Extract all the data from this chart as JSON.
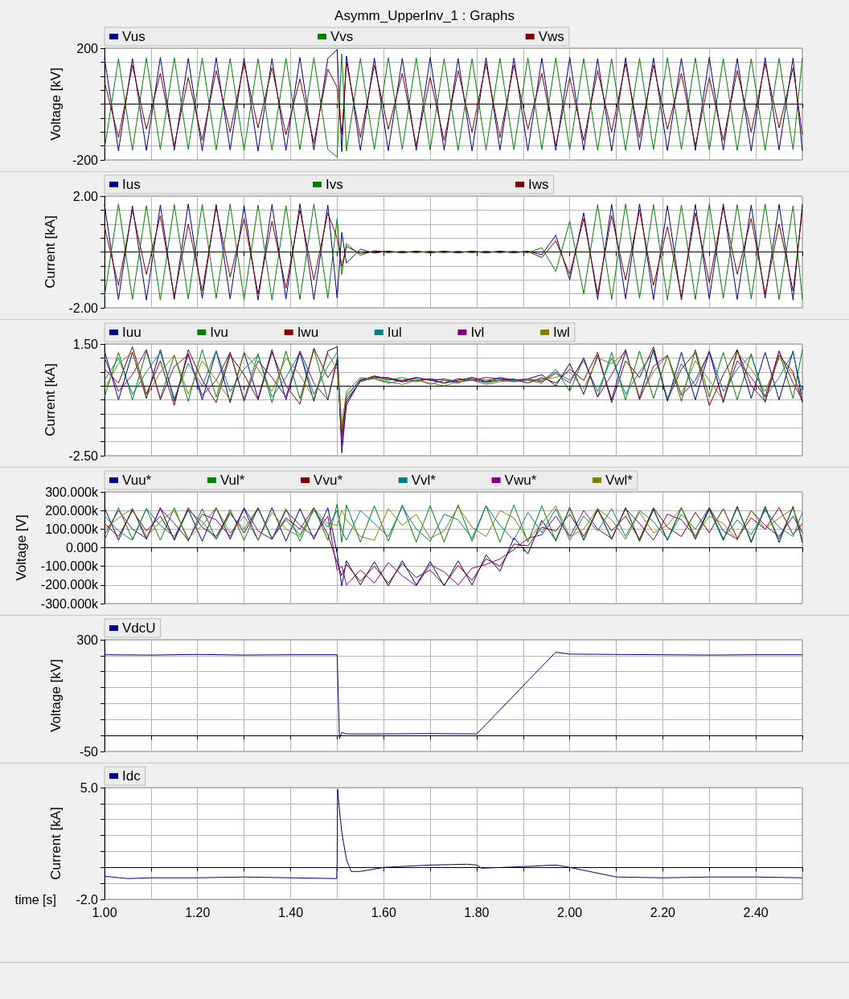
{
  "chart_data": [
    {
      "type": "line",
      "title": "Asymm_UpperInv_1 : Graphs",
      "ylabel": "Voltage [kV]",
      "legend": "top",
      "grid": true,
      "marker": "none",
      "tick_labels": "y",
      "xlim": [
        1,
        2.5
      ],
      "xticks": [
        {
          "value": 1,
          "label": null
        },
        {
          "value": 1.1,
          "label": null
        },
        {
          "value": 1.2,
          "label": null
        },
        {
          "value": 1.3,
          "label": null
        },
        {
          "value": 1.4,
          "label": null
        },
        {
          "value": 1.5,
          "label": null
        },
        {
          "value": 1.6,
          "label": null
        },
        {
          "value": 1.7,
          "label": null
        },
        {
          "value": 1.8,
          "label": null
        },
        {
          "value": 1.9,
          "label": null
        },
        {
          "value": 2,
          "label": null
        },
        {
          "value": 2.1,
          "label": null
        },
        {
          "value": 2.2,
          "label": null
        },
        {
          "value": 2.3,
          "label": null
        },
        {
          "value": 2.4,
          "label": null
        },
        {
          "value": 2.5,
          "label": null
        }
      ],
      "ylim": [
        -200,
        200
      ],
      "yticks": [
        -200,
        {
          "value": -150,
          "label": null
        },
        {
          "value": -100,
          "label": null
        },
        {
          "value": -50,
          "label": null
        },
        {
          "value": 0,
          "label": null
        },
        {
          "value": 50,
          "label": null
        },
        {
          "value": 100,
          "label": null
        },
        {
          "value": 150,
          "label": null
        },
        200
      ],
      "x": [
        1.0,
        1.03,
        1.06,
        1.09,
        1.12,
        1.15,
        1.18,
        1.21,
        1.24,
        1.27,
        1.3,
        1.33,
        1.36,
        1.39,
        1.42,
        1.45,
        1.48,
        1.5,
        1.51,
        1.52,
        1.55,
        1.58,
        1.61,
        1.64,
        1.67,
        1.7,
        1.73,
        1.76,
        1.79,
        1.82,
        1.85,
        1.88,
        1.91,
        1.94,
        1.97,
        2.0,
        2.03,
        2.06,
        2.09,
        2.12,
        2.15,
        2.18,
        2.21,
        2.24,
        2.27,
        2.3,
        2.33,
        2.36,
        2.39,
        2.42,
        2.45,
        2.48,
        2.5
      ],
      "series": [
        {
          "name": "Vus",
          "color": "#000080",
          "values": [
            165,
            -168,
            163,
            -166,
            167,
            -165,
            164,
            -167,
            166,
            -164,
            165,
            -168,
            163,
            -166,
            167,
            -165,
            164,
            195,
            -170,
            172,
            -166,
            165,
            -167,
            164,
            -166,
            167,
            -165,
            163,
            -168,
            166,
            -164,
            165,
            -167,
            164,
            -166,
            167,
            -165,
            163,
            -168,
            166,
            -164,
            165,
            -167,
            164,
            -166,
            167,
            -165,
            163,
            -168,
            166,
            -164,
            165,
            -167
          ]
        },
        {
          "name": "Vvs",
          "color": "#008000",
          "values": [
            -160,
            162,
            -165,
            164,
            -163,
            166,
            -162,
            165,
            -164,
            163,
            -166,
            162,
            -165,
            164,
            -163,
            166,
            -162,
            -190,
            180,
            -168,
            164,
            -163,
            166,
            -162,
            165,
            -164,
            163,
            -166,
            162,
            -165,
            164,
            -163,
            166,
            -162,
            165,
            -164,
            163,
            -166,
            162,
            -165,
            164,
            -163,
            166,
            -162,
            165,
            -164,
            163,
            -166,
            162,
            -165,
            164,
            -163,
            166
          ]
        },
        {
          "name": "Vws",
          "color": "#800000",
          "values": [
            80,
            -120,
            140,
            -90,
            110,
            -150,
            95,
            -130,
            120,
            -100,
            145,
            -85,
            130,
            -110,
            90,
            -140,
            125,
            60,
            -110,
            150,
            -120,
            140,
            -90,
            110,
            -150,
            95,
            -130,
            120,
            -100,
            145,
            -120,
            140,
            -90,
            110,
            -150,
            95,
            -130,
            120,
            -100,
            145,
            -120,
            140,
            -90,
            110,
            -150,
            95,
            -130,
            120,
            -100,
            145,
            -85,
            130,
            -110
          ]
        }
      ]
    },
    {
      "type": "line",
      "ylabel": "Current [kA]",
      "legend": "top",
      "grid": true,
      "marker": "none",
      "tick_labels": "y",
      "xlim": [
        1,
        2.5
      ],
      "xticks": [
        {
          "value": 1,
          "label": null
        },
        {
          "value": 1.1,
          "label": null
        },
        {
          "value": 1.2,
          "label": null
        },
        {
          "value": 1.3,
          "label": null
        },
        {
          "value": 1.4,
          "label": null
        },
        {
          "value": 1.5,
          "label": null
        },
        {
          "value": 1.6,
          "label": null
        },
        {
          "value": 1.7,
          "label": null
        },
        {
          "value": 1.8,
          "label": null
        },
        {
          "value": 1.9,
          "label": null
        },
        {
          "value": 2,
          "label": null
        },
        {
          "value": 2.1,
          "label": null
        },
        {
          "value": 2.2,
          "label": null
        },
        {
          "value": 2.3,
          "label": null
        },
        {
          "value": 2.4,
          "label": null
        },
        {
          "value": 2.5,
          "label": null
        }
      ],
      "ylim": [
        -2,
        2
      ],
      "yticks": [
        {
          "value": -2,
          "label": "-2.00"
        },
        {
          "value": -1.5,
          "label": null
        },
        {
          "value": -1,
          "label": null
        },
        {
          "value": -0.5,
          "label": null
        },
        {
          "value": 0,
          "label": null
        },
        {
          "value": 0.5,
          "label": null
        },
        {
          "value": 1,
          "label": null
        },
        {
          "value": 1.5,
          "label": null
        },
        {
          "value": 2,
          "label": "2.00"
        }
      ],
      "x": [
        1.0,
        1.03,
        1.06,
        1.09,
        1.12,
        1.15,
        1.18,
        1.21,
        1.24,
        1.27,
        1.3,
        1.33,
        1.36,
        1.39,
        1.42,
        1.45,
        1.48,
        1.5,
        1.51,
        1.52,
        1.55,
        1.58,
        1.61,
        1.64,
        1.67,
        1.7,
        1.73,
        1.76,
        1.79,
        1.82,
        1.85,
        1.88,
        1.91,
        1.94,
        1.97,
        2.0,
        2.03,
        2.06,
        2.09,
        2.12,
        2.15,
        2.18,
        2.21,
        2.24,
        2.27,
        2.3,
        2.33,
        2.36,
        2.39,
        2.42,
        2.45,
        2.48,
        2.5
      ],
      "series": [
        {
          "name": "Ius",
          "color": "#000080",
          "values": [
            1.7,
            -1.7,
            1.65,
            -1.72,
            1.68,
            -1.7,
            1.72,
            -1.66,
            1.7,
            -1.68,
            1.66,
            -1.72,
            1.7,
            -1.68,
            1.72,
            -1.7,
            1.68,
            -1.65,
            0.7,
            -0.4,
            0.1,
            -0.04,
            0.03,
            -0.03,
            0.03,
            -0.03,
            0.03,
            -0.03,
            0.03,
            -0.03,
            0.03,
            -0.03,
            0.03,
            -0.1,
            0.6,
            -1.0,
            1.4,
            -1.7,
            1.7,
            -1.68,
            1.72,
            -1.7,
            1.66,
            -1.72,
            1.7,
            -1.68,
            1.72,
            -1.7,
            1.68,
            -1.66,
            1.7,
            -1.72,
            1.7
          ]
        },
        {
          "name": "Ivs",
          "color": "#008000",
          "values": [
            -1.6,
            1.72,
            -1.7,
            1.66,
            -1.72,
            1.7,
            -1.68,
            1.7,
            -1.66,
            1.72,
            -1.7,
            1.68,
            -1.72,
            1.66,
            -1.7,
            1.72,
            -1.66,
            1.2,
            -0.8,
            0.3,
            -0.12,
            0.05,
            -0.03,
            0.03,
            -0.03,
            0.03,
            -0.03,
            0.03,
            -0.03,
            0.03,
            -0.03,
            0.03,
            -0.03,
            0.15,
            -0.7,
            1.1,
            -1.5,
            1.7,
            -1.7,
            1.72,
            -1.66,
            1.7,
            -1.72,
            1.68,
            -1.7,
            1.72,
            -1.66,
            1.7,
            -1.68,
            1.72,
            -1.7,
            1.66,
            -1.7
          ]
        },
        {
          "name": "Iws",
          "color": "#800000",
          "values": [
            0.9,
            -1.2,
            1.5,
            -0.8,
            1.3,
            -1.6,
            1.0,
            -1.4,
            1.6,
            -0.9,
            1.2,
            -1.5,
            1.1,
            -1.3,
            1.5,
            -1.0,
            1.4,
            0.5,
            -0.5,
            0.2,
            -0.06,
            0.02,
            0.02,
            -0.02,
            0.02,
            -0.02,
            0.02,
            -0.02,
            0.02,
            -0.02,
            0.02,
            -0.02,
            0.02,
            -0.2,
            0.4,
            -0.8,
            1.2,
            -1.5,
            1.3,
            -1.0,
            1.5,
            -1.2,
            0.9,
            -1.6,
            1.4,
            -1.1,
            1.6,
            -0.8,
            1.2,
            -1.5,
            1.0,
            -1.4,
            1.5
          ]
        }
      ]
    },
    {
      "type": "line",
      "ylabel": "Current [kA]",
      "legend": "top",
      "grid": true,
      "marker": "none",
      "tick_labels": "y",
      "xlim": [
        1,
        2.5
      ],
      "xticks": [
        {
          "value": 1,
          "label": null
        },
        {
          "value": 1.1,
          "label": null
        },
        {
          "value": 1.2,
          "label": null
        },
        {
          "value": 1.3,
          "label": null
        },
        {
          "value": 1.4,
          "label": null
        },
        {
          "value": 1.5,
          "label": null
        },
        {
          "value": 1.6,
          "label": null
        },
        {
          "value": 1.7,
          "label": null
        },
        {
          "value": 1.8,
          "label": null
        },
        {
          "value": 1.9,
          "label": null
        },
        {
          "value": 2,
          "label": null
        },
        {
          "value": 2.1,
          "label": null
        },
        {
          "value": 2.2,
          "label": null
        },
        {
          "value": 2.3,
          "label": null
        },
        {
          "value": 2.4,
          "label": null
        },
        {
          "value": 2.5,
          "label": null
        }
      ],
      "ylim": [
        -2.5,
        1.5
      ],
      "yticks": [
        {
          "value": -2.5,
          "label": "-2.50"
        },
        {
          "value": -2,
          "label": null
        },
        {
          "value": -1.5,
          "label": null
        },
        {
          "value": -1,
          "label": null
        },
        {
          "value": -0.5,
          "label": null
        },
        {
          "value": 0,
          "label": null
        },
        {
          "value": 0.5,
          "label": null
        },
        {
          "value": 1,
          "label": null
        },
        {
          "value": 1.5,
          "label": "1.50"
        }
      ],
      "x": [
        1.0,
        1.03,
        1.06,
        1.09,
        1.12,
        1.15,
        1.18,
        1.21,
        1.24,
        1.27,
        1.3,
        1.33,
        1.36,
        1.39,
        1.42,
        1.45,
        1.48,
        1.5,
        1.51,
        1.52,
        1.55,
        1.58,
        1.61,
        1.64,
        1.67,
        1.7,
        1.73,
        1.76,
        1.79,
        1.82,
        1.85,
        1.88,
        1.91,
        1.94,
        1.97,
        2.0,
        2.03,
        2.06,
        2.09,
        2.12,
        2.15,
        2.18,
        2.21,
        2.24,
        2.27,
        2.3,
        2.33,
        2.36,
        2.39,
        2.42,
        2.45,
        2.48,
        2.5
      ],
      "series": [
        {
          "name": "Iuu",
          "color": "#000080",
          "values": [
            1.25,
            -0.5,
            1.2,
            -0.45,
            1.3,
            -0.55,
            1.15,
            -0.5,
            1.25,
            -0.6,
            1.2,
            -0.45,
            1.3,
            -0.5,
            1.2,
            -0.55,
            1.25,
            1.4,
            -2.4,
            -0.6,
            0.2,
            0.35,
            0.25,
            0.15,
            0.3,
            0.2,
            0.1,
            0.25,
            0.2,
            0.15,
            0.3,
            0.2,
            0.25,
            0.4,
            0.0,
            0.8,
            -0.3,
            1.1,
            -0.5,
            1.25,
            -0.45,
            1.3,
            -0.55,
            1.2,
            -0.5,
            1.25,
            -0.6,
            1.3,
            -0.45,
            1.2,
            -0.5,
            1.25,
            -0.55
          ]
        },
        {
          "name": "Ivu",
          "color": "#008000",
          "values": [
            -0.4,
            1.2,
            -0.5,
            1.25,
            -0.45,
            1.1,
            -0.55,
            1.3,
            -0.4,
            1.2,
            -0.5,
            1.15,
            -0.6,
            1.25,
            -0.45,
            1.3,
            -0.5,
            1.0,
            -1.9,
            -0.4,
            0.25,
            0.3,
            0.2,
            0.3,
            0.15,
            0.25,
            0.2,
            0.1,
            0.3,
            0.2,
            0.25,
            0.15,
            0.2,
            0.1,
            0.6,
            -0.2,
            1.0,
            -0.4,
            1.2,
            -0.5,
            1.25,
            -0.45,
            1.1,
            -0.55,
            1.3,
            -0.4,
            1.2,
            -0.5,
            1.15,
            -0.6,
            1.25,
            -0.45,
            1.3
          ]
        },
        {
          "name": "Iwu",
          "color": "#800000",
          "values": [
            0.6,
            0.1,
            1.4,
            -0.3,
            0.9,
            -0.7,
            1.3,
            0.2,
            -0.6,
            1.1,
            0.4,
            -0.5,
            1.2,
            0.0,
            -0.65,
            1.35,
            0.3,
            0.8,
            -1.7,
            -0.5,
            0.15,
            0.3,
            0.3,
            0.15,
            0.2,
            0.25,
            0.1,
            0.2,
            0.3,
            0.15,
            0.2,
            0.25,
            0.1,
            0.3,
            0.1,
            0.6,
            0.2,
            1.2,
            -0.6,
            0.9,
            0.3,
            1.4,
            -0.5,
            0.6,
            1.2,
            -0.7,
            0.4,
            1.3,
            0.0,
            -0.55,
            1.1,
            0.5,
            -0.6
          ]
        },
        {
          "name": "Iul",
          "color": "#008080",
          "values": [
            0.2,
            1.0,
            -0.3,
            0.5,
            1.2,
            -0.45,
            0.8,
            0.0,
            1.25,
            -0.2,
            0.6,
            1.1,
            -0.4,
            0.3,
            1.2,
            -0.3,
            0.7,
            1.2,
            -1.4,
            -0.3,
            0.2,
            0.25,
            0.1,
            0.2,
            0.25,
            0.05,
            0.2,
            0.15,
            0.25,
            0.1,
            0.2,
            0.15,
            0.2,
            0.2,
            0.5,
            0.2,
            0.9,
            -0.2,
            1.0,
            -0.3,
            0.5,
            1.2,
            -0.45,
            0.8,
            0.0,
            1.25,
            -0.2,
            0.6,
            1.1,
            -0.4,
            0.3,
            1.2,
            -0.3
          ]
        },
        {
          "name": "Ivl",
          "color": "#800080",
          "values": [
            1.0,
            -0.2,
            0.4,
            1.3,
            -0.5,
            0.7,
            1.1,
            -0.35,
            0.2,
            1.2,
            -0.55,
            0.9,
            0.3,
            -0.4,
            1.25,
            0.1,
            -0.5,
            0.9,
            -2.1,
            -0.7,
            0.2,
            0.35,
            0.25,
            0.2,
            0.3,
            0.2,
            0.25,
            0.15,
            0.2,
            0.3,
            0.25,
            0.2,
            0.25,
            0.15,
            0.45,
            0.1,
            1.0,
            -0.4,
            0.4,
            1.3,
            -0.5,
            0.7,
            1.1,
            -0.35,
            0.2,
            1.2,
            -0.55,
            0.9,
            0.3,
            -0.4,
            1.25,
            0.1,
            -0.5
          ]
        },
        {
          "name": "Iwl",
          "color": "#808000",
          "values": [
            -0.1,
            0.8,
            1.2,
            -0.4,
            0.5,
            1.1,
            -0.3,
            0.9,
            0.2,
            -0.5,
            1.2,
            0.6,
            -0.2,
            1.0,
            0.4,
            -0.45,
            1.15,
            0.6,
            -1.5,
            -0.2,
            0.3,
            0.25,
            0.15,
            0.05,
            0.2,
            0.1,
            0.0,
            0.15,
            0.2,
            0.05,
            0.15,
            0.2,
            0.1,
            0.25,
            0.3,
            0.5,
            -0.1,
            1.0,
            0.8,
            1.2,
            -0.4,
            0.5,
            1.1,
            -0.3,
            0.9,
            0.2,
            -0.5,
            1.2,
            0.6,
            -0.2,
            1.0,
            0.4,
            -0.45
          ]
        }
      ]
    },
    {
      "type": "line",
      "ylabel": "Voltage [V]",
      "legend": "top",
      "grid": true,
      "marker": "none",
      "tick_labels": "y",
      "xlim": [
        1,
        2.5
      ],
      "xticks": [
        {
          "value": 1,
          "label": null
        },
        {
          "value": 1.1,
          "label": null
        },
        {
          "value": 1.2,
          "label": null
        },
        {
          "value": 1.3,
          "label": null
        },
        {
          "value": 1.4,
          "label": null
        },
        {
          "value": 1.5,
          "label": null
        },
        {
          "value": 1.6,
          "label": null
        },
        {
          "value": 1.7,
          "label": null
        },
        {
          "value": 1.8,
          "label": null
        },
        {
          "value": 1.9,
          "label": null
        },
        {
          "value": 2,
          "label": null
        },
        {
          "value": 2.1,
          "label": null
        },
        {
          "value": 2.2,
          "label": null
        },
        {
          "value": 2.3,
          "label": null
        },
        {
          "value": 2.4,
          "label": null
        },
        {
          "value": 2.5,
          "label": null
        }
      ],
      "ylim": [
        -300000,
        300000
      ],
      "yticks": [
        {
          "value": -300000,
          "label": "-300.000k"
        },
        {
          "value": -200000,
          "label": "-200.000k"
        },
        {
          "value": -100000,
          "label": "-100.000k"
        },
        {
          "value": 0,
          "label": "0.000"
        },
        {
          "value": 100000,
          "label": "100.000k"
        },
        {
          "value": 200000,
          "label": "200.000k"
        },
        {
          "value": 300000,
          "label": "300.000k"
        }
      ],
      "x": [
        1.0,
        1.03,
        1.06,
        1.09,
        1.12,
        1.15,
        1.18,
        1.21,
        1.24,
        1.27,
        1.3,
        1.33,
        1.36,
        1.39,
        1.42,
        1.45,
        1.48,
        1.5,
        1.51,
        1.52,
        1.55,
        1.58,
        1.61,
        1.64,
        1.67,
        1.7,
        1.73,
        1.76,
        1.79,
        1.82,
        1.85,
        1.88,
        1.91,
        1.94,
        1.97,
        2.0,
        2.03,
        2.06,
        2.09,
        2.12,
        2.15,
        2.18,
        2.21,
        2.24,
        2.27,
        2.3,
        2.33,
        2.36,
        2.39,
        2.42,
        2.45,
        2.48,
        2.5
      ],
      "series": [
        {
          "name": "Vuu*",
          "color": "#000080",
          "values": [
            215000,
            40000,
            210000,
            45000,
            215000,
            40000,
            205000,
            35000,
            215000,
            45000,
            210000,
            40000,
            215000,
            35000,
            210000,
            45000,
            215000,
            -30000,
            -205000,
            -70000,
            -200000,
            -75000,
            -205000,
            -70000,
            -200000,
            -75000,
            -205000,
            -70000,
            -200000,
            -39000,
            -126000,
            54000,
            -33000,
            147000,
            40000,
            215000,
            40000,
            210000,
            45000,
            215000,
            35000,
            205000,
            40000,
            215000,
            45000,
            210000,
            40000,
            222000,
            28000,
            222000,
            28000,
            222000,
            28000
          ]
        },
        {
          "name": "Vul*",
          "color": "#008000",
          "values": [
            40000,
            215000,
            45000,
            210000,
            40000,
            215000,
            35000,
            210000,
            45000,
            205000,
            40000,
            215000,
            45000,
            210000,
            35000,
            215000,
            40000,
            235000,
            30000,
            230000,
            30000,
            225000,
            35000,
            230000,
            30000,
            225000,
            30000,
            230000,
            35000,
            225000,
            30000,
            230000,
            30000,
            225000,
            35000,
            215000,
            40000,
            210000,
            45000,
            215000,
            35000,
            210000,
            40000,
            215000,
            45000,
            205000,
            40000,
            215000,
            35000,
            210000,
            45000,
            215000,
            40000
          ]
        },
        {
          "name": "Vvu*",
          "color": "#800000",
          "values": [
            130000,
            60000,
            200000,
            90000,
            170000,
            45000,
            215000,
            110000,
            60000,
            190000,
            80000,
            210000,
            50000,
            160000,
            100000,
            215000,
            70000,
            -80000,
            -150000,
            -90000,
            -180000,
            -100000,
            -190000,
            -85000,
            -160000,
            -120000,
            -200000,
            -95000,
            -175000,
            -60000,
            -100000,
            20000,
            10000,
            110000,
            90000,
            180000,
            60000,
            200000,
            90000,
            170000,
            45000,
            215000,
            110000,
            60000,
            190000,
            80000,
            210000,
            50000,
            160000,
            100000,
            215000,
            70000,
            130000
          ]
        },
        {
          "name": "Vvl*",
          "color": "#008080",
          "values": [
            170000,
            90000,
            40000,
            210000,
            120000,
            60000,
            200000,
            140000,
            45000,
            180000,
            100000,
            215000,
            50000,
            150000,
            70000,
            200000,
            110000,
            200000,
            90000,
            40000,
            200000,
            130000,
            60000,
            220000,
            100000,
            35000,
            180000,
            150000,
            50000,
            225000,
            120000,
            40000,
            190000,
            80000,
            210000,
            40000,
            170000,
            90000,
            210000,
            60000,
            200000,
            140000,
            45000,
            180000,
            100000,
            215000,
            50000,
            150000,
            70000,
            200000,
            110000,
            60000,
            190000
          ]
        },
        {
          "name": "Vwu*",
          "color": "#800080",
          "values": [
            70000,
            200000,
            100000,
            50000,
            210000,
            130000,
            40000,
            180000,
            150000,
            60000,
            215000,
            90000,
            45000,
            200000,
            120000,
            60000,
            170000,
            -120000,
            -100000,
            -200000,
            -120000,
            -190000,
            -80000,
            -150000,
            -205000,
            -90000,
            -130000,
            -200000,
            -110000,
            -90000,
            -60000,
            -10000,
            50000,
            70000,
            170000,
            60000,
            200000,
            100000,
            50000,
            210000,
            130000,
            40000,
            180000,
            150000,
            60000,
            215000,
            90000,
            45000,
            200000,
            120000,
            60000,
            170000,
            80000
          ]
        },
        {
          "name": "Vwl*",
          "color": "#808000",
          "values": [
            100000,
            160000,
            210000,
            60000,
            140000,
            200000,
            50000,
            120000,
            215000,
            80000,
            170000,
            40000,
            190000,
            100000,
            60000,
            210000,
            130000,
            120000,
            200000,
            150000,
            60000,
            40000,
            210000,
            120000,
            180000,
            50000,
            90000,
            220000,
            110000,
            60000,
            200000,
            160000,
            40000,
            130000,
            225000,
            60000,
            100000,
            210000,
            150000,
            45000,
            190000,
            80000,
            120000,
            215000,
            60000,
            170000,
            130000,
            40000,
            200000,
            100000,
            160000,
            210000,
            80000
          ]
        }
      ]
    },
    {
      "type": "line",
      "ylabel": "Voltage [kV]",
      "legend": "top",
      "grid": true,
      "marker": "none",
      "tick_labels": "y",
      "xlim": [
        1,
        2.5
      ],
      "xticks": [
        {
          "value": 1,
          "label": null
        },
        {
          "value": 1.1,
          "label": null
        },
        {
          "value": 1.2,
          "label": null
        },
        {
          "value": 1.3,
          "label": null
        },
        {
          "value": 1.4,
          "label": null
        },
        {
          "value": 1.5,
          "label": null
        },
        {
          "value": 1.6,
          "label": null
        },
        {
          "value": 1.7,
          "label": null
        },
        {
          "value": 1.8,
          "label": null
        },
        {
          "value": 1.9,
          "label": null
        },
        {
          "value": 2,
          "label": null
        },
        {
          "value": 2.1,
          "label": null
        },
        {
          "value": 2.2,
          "label": null
        },
        {
          "value": 2.3,
          "label": null
        },
        {
          "value": 2.4,
          "label": null
        },
        {
          "value": 2.5,
          "label": null
        }
      ],
      "ylim": [
        -50,
        300
      ],
      "yticks": [
        -50,
        {
          "value": 0,
          "label": null
        },
        {
          "value": 50,
          "label": null
        },
        {
          "value": 100,
          "label": null
        },
        {
          "value": 150,
          "label": null
        },
        {
          "value": 200,
          "label": null
        },
        {
          "value": 250,
          "label": null
        },
        300
      ],
      "x": [
        1.0,
        1.1,
        1.2,
        1.3,
        1.4,
        1.5,
        1.502,
        1.505,
        1.51,
        1.52,
        1.6,
        1.7,
        1.8,
        1.85,
        1.9,
        1.95,
        1.97,
        2.0,
        2.1,
        2.2,
        2.3,
        2.4,
        2.5
      ],
      "series": [
        {
          "name": "VdcU",
          "color": "#000080",
          "values": [
            253,
            252,
            254,
            252,
            253,
            253,
            150,
            -10,
            10,
            5,
            5,
            6,
            5,
            80,
            156,
            231,
            261,
            255,
            254,
            253,
            252,
            253,
            253
          ]
        }
      ]
    },
    {
      "type": "line",
      "ylabel": "Current [kA]",
      "xlabel": "time [s]",
      "legend": "top",
      "grid": true,
      "marker": "none",
      "xlim": [
        1,
        2.5
      ],
      "xticks": [
        {
          "value": 1,
          "label": "1.00"
        },
        {
          "value": 1.1,
          "label": null
        },
        {
          "value": 1.2,
          "label": "1.20"
        },
        {
          "value": 1.3,
          "label": null
        },
        {
          "value": 1.4,
          "label": "1.40"
        },
        {
          "value": 1.5,
          "label": null
        },
        {
          "value": 1.6,
          "label": "1.60"
        },
        {
          "value": 1.7,
          "label": null
        },
        {
          "value": 1.8,
          "label": "1.80"
        },
        {
          "value": 1.9,
          "label": null
        },
        {
          "value": 2,
          "label": "2.00"
        },
        {
          "value": 2.1,
          "label": null
        },
        {
          "value": 2.2,
          "label": "2.20"
        },
        {
          "value": 2.3,
          "label": null
        },
        {
          "value": 2.4,
          "label": "2.40"
        },
        {
          "value": 2.5,
          "label": null
        }
      ],
      "ylim": [
        -2,
        5
      ],
      "yticks": [
        {
          "value": -2,
          "label": "-2.0"
        },
        {
          "value": -1,
          "label": null
        },
        {
          "value": 0,
          "label": null
        },
        {
          "value": 1,
          "label": null
        },
        {
          "value": 2,
          "label": null
        },
        {
          "value": 3,
          "label": null
        },
        {
          "value": 4,
          "label": null
        },
        {
          "value": 5,
          "label": "5.0"
        }
      ],
      "x": [
        1.0,
        1.05,
        1.1,
        1.2,
        1.3,
        1.4,
        1.499,
        1.5,
        1.501,
        1.505,
        1.51,
        1.52,
        1.53,
        1.55,
        1.6,
        1.7,
        1.78,
        1.8,
        1.81,
        1.9,
        1.97,
        2.0,
        2.05,
        2.1,
        2.2,
        2.3,
        2.4,
        2.5
      ],
      "series": [
        {
          "name": "Idc",
          "color": "#000080",
          "values": [
            -0.55,
            -0.7,
            -0.65,
            -0.65,
            -0.6,
            -0.65,
            -0.7,
            0.2,
            4.9,
            3.6,
            2.2,
            0.5,
            -0.25,
            -0.25,
            0.0,
            0.15,
            0.2,
            0.15,
            -0.05,
            0.05,
            0.15,
            0.0,
            -0.3,
            -0.6,
            -0.65,
            -0.6,
            -0.6,
            -0.65
          ]
        }
      ]
    }
  ]
}
